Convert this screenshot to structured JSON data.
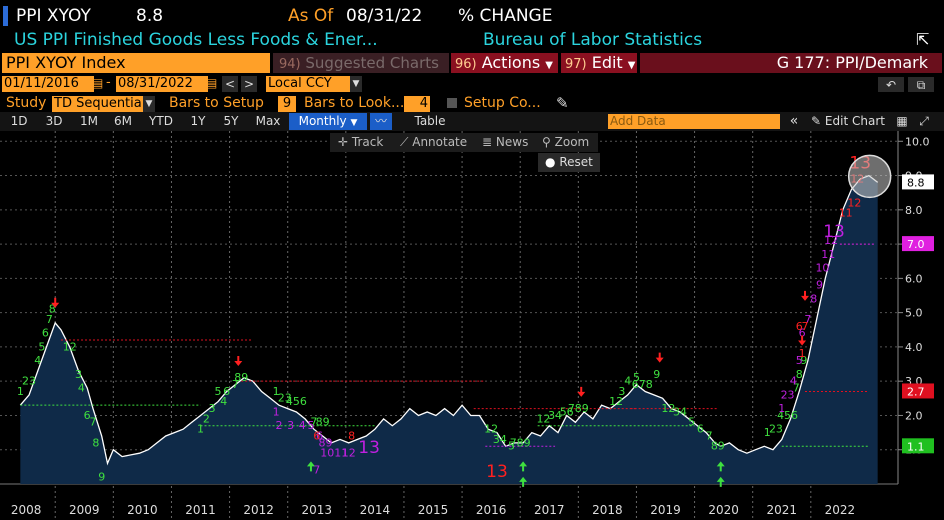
{
  "header": {
    "ticker": "PPI XYOY",
    "last_value": "8.8",
    "as_of_label": "As Of",
    "as_of_date": "08/31/22",
    "units": "% CHANGE",
    "description": "US PPI Finished Goods Less Foods & Ener...",
    "source": "Bureau of Labor Statistics"
  },
  "toolbar": {
    "security_name": "PPI XYOY Index",
    "suggested_num": "94)",
    "suggested_label": "Suggested Charts",
    "actions_num": "96)",
    "actions_label": "Actions",
    "edit_num": "97)",
    "edit_label": "Edit",
    "page_title": "G 177: PPI/Demark"
  },
  "range": {
    "start_date": "01/11/2016",
    "end_date": "08/31/2022",
    "currency": "Local CCY"
  },
  "study": {
    "label": "Study",
    "value": "TD Sequentia",
    "bars_setup_label": "Bars to Setup",
    "bars_setup_value": "9",
    "bars_look_label": "Bars to Look...",
    "bars_look_value": "4",
    "setup_label": "Setup Co..."
  },
  "periods": [
    "1D",
    "3D",
    "1M",
    "6M",
    "YTD",
    "1Y",
    "5Y",
    "Max"
  ],
  "frequency": "Monthly",
  "table_label": "Table",
  "add_data_placeholder": "Add Data",
  "edit_chart_label": "Edit Chart",
  "chart_tools": {
    "track": "Track",
    "annotate": "Annotate",
    "news": "News",
    "zoom": "Zoom",
    "reset": "Reset"
  },
  "colors": {
    "orange": "#ffa028",
    "line": "#ffffff",
    "area": "#0f2a48",
    "setup_green": "#3fe03f",
    "countdown_red": "#ff2020",
    "countdown_magenta": "#c020e0"
  },
  "chart_data": {
    "type": "area",
    "x_years": [
      "2008",
      "2009",
      "2010",
      "2011",
      "2012",
      "2013",
      "2014",
      "2015",
      "2016",
      "2017",
      "2018",
      "2019",
      "2020",
      "2021",
      "2022"
    ],
    "y_ticks": [
      "10.0",
      "9.0",
      "8.0",
      "7.0",
      "6.0",
      "5.0",
      "4.0",
      "3.0",
      "2.0",
      "1.0"
    ],
    "ylim": [
      0.0,
      10.3
    ],
    "series_points": [
      [
        2007.9,
        2.3
      ],
      [
        2008.05,
        2.6
      ],
      [
        2008.2,
        3.3
      ],
      [
        2008.35,
        4.0
      ],
      [
        2008.5,
        4.7
      ],
      [
        2008.6,
        4.5
      ],
      [
        2008.75,
        4.0
      ],
      [
        2008.9,
        3.3
      ],
      [
        2009.05,
        2.8
      ],
      [
        2009.15,
        2.2
      ],
      [
        2009.3,
        1.4
      ],
      [
        2009.4,
        0.6
      ],
      [
        2009.5,
        1.0
      ],
      [
        2009.65,
        0.8
      ],
      [
        2009.8,
        0.85
      ],
      [
        2009.95,
        0.9
      ],
      [
        2010.1,
        1.0
      ],
      [
        2010.25,
        1.2
      ],
      [
        2010.4,
        1.4
      ],
      [
        2010.55,
        1.5
      ],
      [
        2010.7,
        1.6
      ],
      [
        2010.85,
        1.8
      ],
      [
        2011.0,
        2.0
      ],
      [
        2011.15,
        2.2
      ],
      [
        2011.3,
        2.4
      ],
      [
        2011.45,
        2.7
      ],
      [
        2011.6,
        2.9
      ],
      [
        2011.75,
        3.1
      ],
      [
        2011.9,
        3.0
      ],
      [
        2012.05,
        2.7
      ],
      [
        2012.2,
        2.5
      ],
      [
        2012.35,
        2.3
      ],
      [
        2012.5,
        2.2
      ],
      [
        2012.65,
        2.1
      ],
      [
        2012.8,
        1.9
      ],
      [
        2012.95,
        1.6
      ],
      [
        2013.1,
        1.4
      ],
      [
        2013.25,
        1.2
      ],
      [
        2013.4,
        1.3
      ],
      [
        2013.55,
        1.2
      ],
      [
        2013.7,
        1.3
      ],
      [
        2013.85,
        1.4
      ],
      [
        2014.0,
        1.6
      ],
      [
        2014.15,
        1.9
      ],
      [
        2014.3,
        1.7
      ],
      [
        2014.45,
        1.9
      ],
      [
        2014.6,
        2.2
      ],
      [
        2014.75,
        2.0
      ],
      [
        2014.9,
        2.1
      ],
      [
        2015.05,
        2.0
      ],
      [
        2015.2,
        2.2
      ],
      [
        2015.35,
        2.0
      ],
      [
        2015.5,
        2.3
      ],
      [
        2015.65,
        2.0
      ],
      [
        2015.8,
        2.0
      ],
      [
        2015.95,
        1.6
      ],
      [
        2016.1,
        1.5
      ],
      [
        2016.25,
        1.1
      ],
      [
        2016.4,
        1.2
      ],
      [
        2016.55,
        1.2
      ],
      [
        2016.7,
        1.5
      ],
      [
        2016.85,
        1.4
      ],
      [
        2017.0,
        1.7
      ],
      [
        2017.15,
        1.5
      ],
      [
        2017.3,
        2.0
      ],
      [
        2017.45,
        1.8
      ],
      [
        2017.6,
        2.1
      ],
      [
        2017.75,
        1.9
      ],
      [
        2017.9,
        2.3
      ],
      [
        2018.05,
        2.2
      ],
      [
        2018.2,
        2.4
      ],
      [
        2018.35,
        2.6
      ],
      [
        2018.5,
        2.9
      ],
      [
        2018.65,
        2.7
      ],
      [
        2018.8,
        2.6
      ],
      [
        2018.95,
        2.5
      ],
      [
        2019.1,
        2.2
      ],
      [
        2019.25,
        2.1
      ],
      [
        2019.4,
        1.9
      ],
      [
        2019.55,
        1.7
      ],
      [
        2019.7,
        1.5
      ],
      [
        2019.85,
        1.2
      ],
      [
        2019.95,
        1.1
      ],
      [
        2020.1,
        1.2
      ],
      [
        2020.25,
        1.0
      ],
      [
        2020.4,
        0.9
      ],
      [
        2020.55,
        1.0
      ],
      [
        2020.7,
        1.1
      ],
      [
        2020.85,
        1.0
      ],
      [
        2021.0,
        1.3
      ],
      [
        2021.15,
        1.9
      ],
      [
        2021.3,
        2.7
      ],
      [
        2021.45,
        3.6
      ],
      [
        2021.6,
        4.8
      ],
      [
        2021.75,
        6.0
      ],
      [
        2021.9,
        7.0
      ],
      [
        2022.05,
        8.0
      ],
      [
        2022.2,
        8.6
      ],
      [
        2022.35,
        8.9
      ],
      [
        2022.5,
        9.0
      ],
      [
        2022.65,
        8.8
      ]
    ],
    "right_labels": [
      {
        "value": 8.8,
        "label": "8.8",
        "color": "#ffffff"
      },
      {
        "value": 7.0,
        "label": "7.0",
        "color": "#e020e0"
      },
      {
        "value": 2.7,
        "label": "2.7",
        "color": "#e01020"
      },
      {
        "value": 1.1,
        "label": "1.1",
        "color": "#20c020"
      }
    ],
    "levels": [
      {
        "x0": 2008.6,
        "x1": 2011.9,
        "y": 4.2,
        "color": "#e01020"
      },
      {
        "x0": 2007.9,
        "x1": 2011.0,
        "y": 2.3,
        "color": "#3fe03f"
      },
      {
        "x0": 2011.7,
        "x1": 2015.9,
        "y": 3.0,
        "color": "#e01020"
      },
      {
        "x0": 2011.0,
        "x1": 2014.0,
        "y": 1.7,
        "color": "#3fe03f"
      },
      {
        "x0": 2015.7,
        "x1": 2018.5,
        "y": 2.2,
        "color": "#e01020"
      },
      {
        "x0": 2015.9,
        "x1": 2017.1,
        "y": 1.1,
        "color": "#c020e0"
      },
      {
        "x0": 2016.8,
        "x1": 2019.5,
        "y": 1.7,
        "color": "#3fe03f"
      },
      {
        "x0": 2018.4,
        "x1": 2019.9,
        "y": 2.2,
        "color": "#e01020"
      },
      {
        "x0": 2021.0,
        "x1": 2022.5,
        "y": 1.1,
        "color": "#3fe03f"
      },
      {
        "x0": 2021.4,
        "x1": 2022.5,
        "y": 2.7,
        "color": "#e01020"
      },
      {
        "x0": 2022.0,
        "x1": 2022.6,
        "y": 7.0,
        "color": "#e020e0"
      }
    ],
    "marks": [
      {
        "x": 2007.9,
        "y": 2.6,
        "t": "1",
        "c": "#3fe03f"
      },
      {
        "x": 2008.05,
        "y": 2.9,
        "t": "23",
        "c": "#3fe03f"
      },
      {
        "x": 2008.2,
        "y": 3.5,
        "t": "4",
        "c": "#3fe03f"
      },
      {
        "x": 2008.27,
        "y": 3.9,
        "t": "5",
        "c": "#3fe03f"
      },
      {
        "x": 2008.33,
        "y": 4.3,
        "t": "6",
        "c": "#3fe03f"
      },
      {
        "x": 2008.4,
        "y": 4.7,
        "t": "7",
        "c": "#3fe03f"
      },
      {
        "x": 2008.45,
        "y": 5.0,
        "t": "8",
        "c": "#3fe03f"
      },
      {
        "x": 2008.75,
        "y": 3.9,
        "t": "12",
        "c": "#3fe03f"
      },
      {
        "x": 2008.9,
        "y": 3.1,
        "t": "3",
        "c": "#3fe03f"
      },
      {
        "x": 2008.95,
        "y": 2.7,
        "t": "4",
        "c": "#3fe03f"
      },
      {
        "x": 2009.05,
        "y": 1.9,
        "t": "6",
        "c": "#3fe03f"
      },
      {
        "x": 2009.15,
        "y": 1.7,
        "t": "7",
        "c": "#3fe03f"
      },
      {
        "x": 2009.2,
        "y": 1.1,
        "t": "8",
        "c": "#3fe03f"
      },
      {
        "x": 2009.3,
        "y": 0.1,
        "t": "9",
        "c": "#3fe03f"
      },
      {
        "x": 2011.0,
        "y": 1.5,
        "t": "1",
        "c": "#3fe03f"
      },
      {
        "x": 2011.1,
        "y": 1.8,
        "t": "2",
        "c": "#3fe03f"
      },
      {
        "x": 2011.2,
        "y": 2.1,
        "t": "3",
        "c": "#3fe03f"
      },
      {
        "x": 2011.3,
        "y": 2.6,
        "t": "5",
        "c": "#3fe03f"
      },
      {
        "x": 2011.4,
        "y": 2.3,
        "t": "4",
        "c": "#3fe03f"
      },
      {
        "x": 2011.45,
        "y": 2.6,
        "t": "6",
        "c": "#3fe03f"
      },
      {
        "x": 2011.6,
        "y": 2.8,
        "t": "7",
        "c": "#3fe03f"
      },
      {
        "x": 2011.7,
        "y": 3.0,
        "t": "89",
        "c": "#3fe03f"
      },
      {
        "x": 2012.3,
        "y": 2.6,
        "t": "1",
        "c": "#3fe03f"
      },
      {
        "x": 2012.45,
        "y": 2.4,
        "t": "23",
        "c": "#3fe03f"
      },
      {
        "x": 2012.65,
        "y": 2.3,
        "t": "456",
        "c": "#3fe03f"
      },
      {
        "x": 2012.95,
        "y": 1.7,
        "t": "7",
        "c": "#3fe03f"
      },
      {
        "x": 2013.1,
        "y": 1.7,
        "t": "89",
        "c": "#3fe03f"
      },
      {
        "x": 2012.3,
        "y": 2.0,
        "t": "1",
        "c": "#c020e0"
      },
      {
        "x": 2012.35,
        "y": 1.6,
        "t": "2",
        "c": "#c020e0"
      },
      {
        "x": 2012.55,
        "y": 1.6,
        "t": "3",
        "c": "#c020e0"
      },
      {
        "x": 2012.75,
        "y": 1.6,
        "t": "4",
        "c": "#c020e0"
      },
      {
        "x": 2012.9,
        "y": 1.6,
        "t": "5",
        "c": "#c020e0"
      },
      {
        "x": 2013.05,
        "y": 1.3,
        "t": "6",
        "c": "#c020e0"
      },
      {
        "x": 2013.15,
        "y": 1.1,
        "t": "89",
        "c": "#c020e0"
      },
      {
        "x": 2013.3,
        "y": 0.8,
        "t": "1011",
        "c": "#c020e0"
      },
      {
        "x": 2013.55,
        "y": 0.8,
        "t": "12",
        "c": "#c020e0"
      },
      {
        "x": 2013.0,
        "y": 0.3,
        "t": "7",
        "c": "#c020e0"
      },
      {
        "x": 2016.0,
        "y": 1.5,
        "t": "12",
        "c": "#3fe03f"
      },
      {
        "x": 2016.15,
        "y": 1.2,
        "t": "34",
        "c": "#3fe03f"
      },
      {
        "x": 2016.35,
        "y": 1.0,
        "t": "5",
        "c": "#3fe03f"
      },
      {
        "x": 2016.5,
        "y": 1.1,
        "t": "789",
        "c": "#3fe03f"
      },
      {
        "x": 2016.9,
        "y": 1.8,
        "t": "12",
        "c": "#3fe03f"
      },
      {
        "x": 2017.1,
        "y": 1.9,
        "t": "34",
        "c": "#3fe03f"
      },
      {
        "x": 2017.3,
        "y": 2.0,
        "t": "56",
        "c": "#3fe03f"
      },
      {
        "x": 2017.5,
        "y": 2.1,
        "t": "789",
        "c": "#3fe03f"
      },
      {
        "x": 2018.15,
        "y": 2.3,
        "t": "12",
        "c": "#3fe03f"
      },
      {
        "x": 2018.25,
        "y": 2.6,
        "t": "3",
        "c": "#3fe03f"
      },
      {
        "x": 2018.35,
        "y": 2.9,
        "t": "4",
        "c": "#3fe03f"
      },
      {
        "x": 2018.5,
        "y": 3.0,
        "t": "5",
        "c": "#3fe03f"
      },
      {
        "x": 2018.6,
        "y": 2.8,
        "t": "678",
        "c": "#3fe03f"
      },
      {
        "x": 2018.85,
        "y": 3.1,
        "t": "9",
        "c": "#3fe03f"
      },
      {
        "x": 2019.05,
        "y": 2.1,
        "t": "12",
        "c": "#3fe03f"
      },
      {
        "x": 2019.25,
        "y": 2.0,
        "t": "34",
        "c": "#3fe03f"
      },
      {
        "x": 2019.45,
        "y": 1.7,
        "t": "5",
        "c": "#3fe03f"
      },
      {
        "x": 2019.6,
        "y": 1.5,
        "t": "6",
        "c": "#3fe03f"
      },
      {
        "x": 2019.75,
        "y": 1.3,
        "t": "7",
        "c": "#3fe03f"
      },
      {
        "x": 2019.9,
        "y": 1.0,
        "t": "89",
        "c": "#3fe03f"
      },
      {
        "x": 2020.75,
        "y": 1.4,
        "t": "1",
        "c": "#3fe03f"
      },
      {
        "x": 2020.9,
        "y": 1.5,
        "t": "23",
        "c": "#3fe03f"
      },
      {
        "x": 2021.1,
        "y": 1.9,
        "t": "456",
        "c": "#3fe03f"
      },
      {
        "x": 2021.25,
        "y": 2.7,
        "t": "7",
        "c": "#3fe03f"
      },
      {
        "x": 2021.3,
        "y": 3.1,
        "t": "8",
        "c": "#3fe03f"
      },
      {
        "x": 2021.38,
        "y": 3.5,
        "t": "9",
        "c": "#3fe03f"
      },
      {
        "x": 2021.0,
        "y": 2.1,
        "t": "1",
        "c": "#c020e0"
      },
      {
        "x": 2021.1,
        "y": 2.5,
        "t": "23",
        "c": "#c020e0"
      },
      {
        "x": 2021.2,
        "y": 2.9,
        "t": "4",
        "c": "#c020e0"
      },
      {
        "x": 2021.3,
        "y": 3.5,
        "t": "5",
        "c": "#c020e0"
      },
      {
        "x": 2021.35,
        "y": 4.3,
        "t": "6",
        "c": "#c020e0"
      },
      {
        "x": 2021.45,
        "y": 4.7,
        "t": "7",
        "c": "#c020e0"
      },
      {
        "x": 2021.55,
        "y": 5.3,
        "t": "8",
        "c": "#c020e0"
      },
      {
        "x": 2021.65,
        "y": 5.7,
        "t": "9",
        "c": "#c020e0"
      },
      {
        "x": 2021.7,
        "y": 6.2,
        "t": "10",
        "c": "#c020e0"
      },
      {
        "x": 2021.8,
        "y": 6.6,
        "t": "11",
        "c": "#c020e0"
      },
      {
        "x": 2021.85,
        "y": 7.0,
        "t": "12",
        "c": "#c020e0"
      },
      {
        "x": 2021.9,
        "y": 7.2,
        "t": "13",
        "c": "#c020e0",
        "big": true
      },
      {
        "x": 2021.3,
        "y": 4.5,
        "t": "6",
        "c": "#ff2020"
      },
      {
        "x": 2021.4,
        "y": 4.5,
        "t": "7",
        "c": "#ff2020"
      },
      {
        "x": 2021.35,
        "y": 3.7,
        "t": "1",
        "c": "#ff2020"
      },
      {
        "x": 2022.1,
        "y": 7.8,
        "t": "11",
        "c": "#ff2020"
      },
      {
        "x": 2022.25,
        "y": 8.1,
        "t": "12",
        "c": "#ff2020"
      },
      {
        "x": 2022.3,
        "y": 8.8,
        "t": "12",
        "c": "#ff2020"
      },
      {
        "x": 2022.35,
        "y": 9.2,
        "t": "13",
        "c": "#ff2020",
        "big": true
      },
      {
        "x": 2016.1,
        "y": 0.2,
        "t": "13",
        "c": "#ff2020",
        "big": true
      },
      {
        "x": 2013.9,
        "y": 0.9,
        "t": "13",
        "c": "#c020e0",
        "big": true
      },
      {
        "x": 2013.6,
        "y": 1.3,
        "t": "8",
        "c": "#ff2020"
      },
      {
        "x": 2013.0,
        "y": 1.3,
        "t": "6",
        "c": "#ff2020"
      }
    ],
    "arrows": [
      {
        "x": 2008.5,
        "y": 5.2,
        "dir": "down"
      },
      {
        "x": 2011.65,
        "y": 3.5,
        "dir": "down"
      },
      {
        "x": 2017.55,
        "y": 2.6,
        "dir": "down"
      },
      {
        "x": 2018.9,
        "y": 3.6,
        "dir": "down"
      },
      {
        "x": 2021.4,
        "y": 5.4,
        "dir": "down"
      },
      {
        "x": 2021.35,
        "y": 4.1,
        "dir": "down"
      },
      {
        "x": 2012.9,
        "y": 0.6,
        "dir": "up"
      },
      {
        "x": 2016.55,
        "y": 0.6,
        "dir": "up"
      },
      {
        "x": 2016.55,
        "y": 0.15,
        "dir": "up"
      },
      {
        "x": 2019.95,
        "y": 0.15,
        "dir": "up"
      },
      {
        "x": 2019.95,
        "y": 0.6,
        "dir": "up"
      }
    ]
  }
}
